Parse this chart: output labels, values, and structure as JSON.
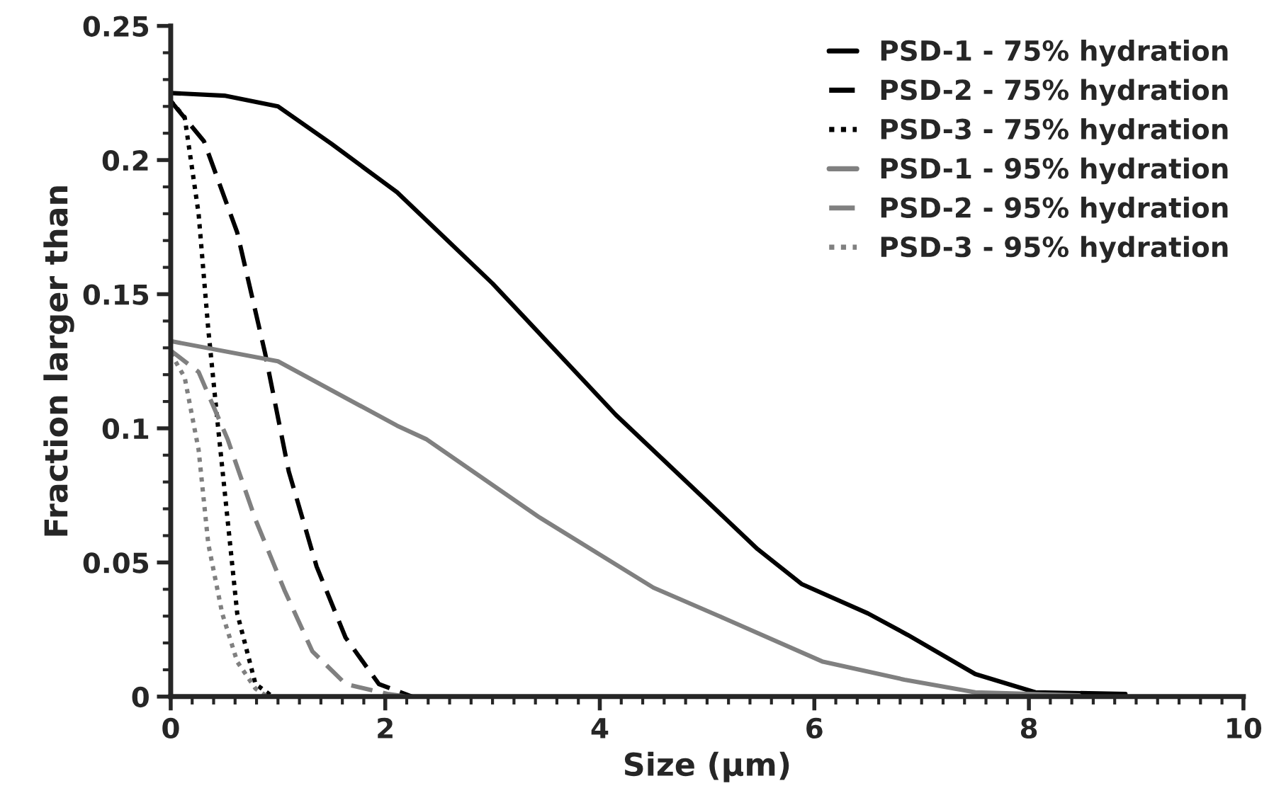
{
  "chart_data": {
    "type": "line",
    "xlabel": "Size (µm)",
    "ylabel": "Fraction larger than",
    "xlim": [
      0,
      10
    ],
    "ylim": [
      0,
      0.25
    ],
    "xticks": [
      0,
      2,
      4,
      6,
      8,
      10
    ],
    "yticks": [
      0,
      0.05,
      0.1,
      0.15,
      0.2,
      0.25
    ],
    "grid": false,
    "legend": "top right",
    "marker": "none",
    "series": [
      {
        "name": "PSD-1 - 75% hydration",
        "color": "#000000",
        "line_style": "solid",
        "x": [
          0,
          0.5,
          1,
          1.5,
          2.11,
          3,
          4.15,
          5.47,
          5.88,
          6.5,
          6.87,
          7.5,
          8.06,
          8.9
        ],
        "values": [
          0.225,
          0.224,
          0.22,
          0.206,
          0.188,
          0.154,
          0.105,
          0.055,
          0.042,
          0.031,
          0.023,
          0.0084,
          0.0016,
          0.001
        ]
      },
      {
        "name": "PSD-2 - 75% hydration",
        "color": "#000000",
        "line_style": "dashed",
        "x": [
          0,
          0.31,
          0.62,
          0.88,
          1.1,
          1.36,
          1.63,
          1.94,
          2.25
        ],
        "values": [
          0.222,
          0.207,
          0.173,
          0.128,
          0.084,
          0.0485,
          0.022,
          0.0047,
          0
        ]
      },
      {
        "name": "PSD-3 - 75% hydration",
        "color": "#000000",
        "line_style": "dotted",
        "x": [
          0,
          0.13,
          0.26,
          0.35,
          0.44,
          0.53,
          0.62,
          0.79,
          0.95
        ],
        "values": [
          0.222,
          0.216,
          0.18,
          0.137,
          0.101,
          0.066,
          0.031,
          0.0047,
          0
        ]
      },
      {
        "name": "PSD-1 - 95% hydration",
        "color": "#808080",
        "line_style": "solid",
        "x": [
          0,
          1,
          2.11,
          2.38,
          3.43,
          4.5,
          5.17,
          6.08,
          6.84,
          7.5,
          8.47
        ],
        "values": [
          0.1325,
          0.125,
          0.101,
          0.096,
          0.067,
          0.0406,
          0.029,
          0.013,
          0.0063,
          0.0016,
          0.0005
        ]
      },
      {
        "name": "PSD-2 - 95% hydration",
        "color": "#808080",
        "line_style": "dashed",
        "x": [
          0,
          0.26,
          0.53,
          0.79,
          1.06,
          1.32,
          1.63,
          2.02,
          2.2
        ],
        "values": [
          0.129,
          0.121,
          0.096,
          0.066,
          0.0397,
          0.0169,
          0.0047,
          0.001,
          0
        ]
      },
      {
        "name": "PSD-3 - 95% hydration",
        "color": "#808080",
        "line_style": "dotted",
        "x": [
          0,
          0.13,
          0.26,
          0.35,
          0.48,
          0.62,
          0.79,
          0.9
        ],
        "values": [
          0.128,
          0.119,
          0.092,
          0.057,
          0.031,
          0.013,
          0.003,
          0
        ]
      }
    ]
  }
}
